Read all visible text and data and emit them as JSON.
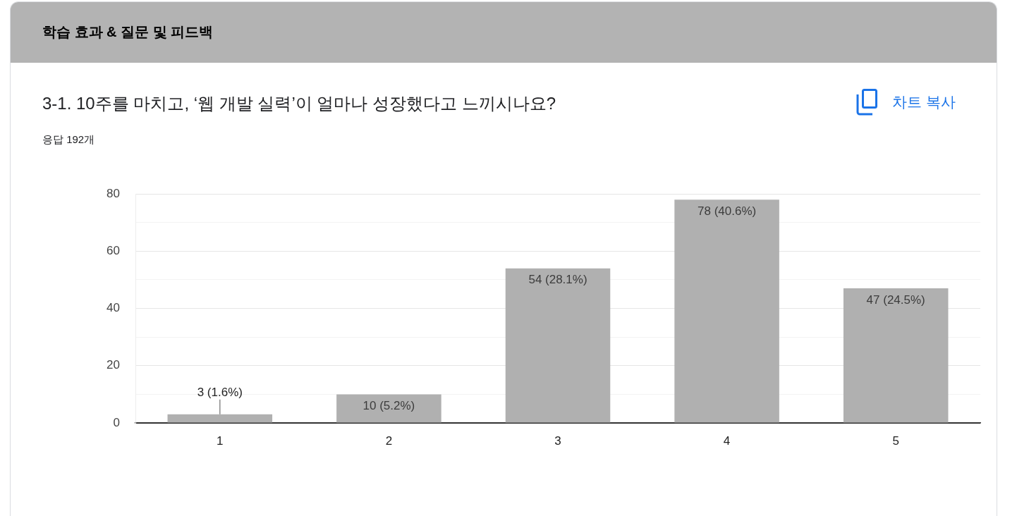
{
  "chart_data": {
    "type": "bar",
    "title": "3-1. 10주를 마치고, ‘웹 개발 실력’이 얼마나 성장했다고 느끼시나요?",
    "subtitle": "응답 192개",
    "annotations": [
      "학습 효과 & 질문 및 피드백",
      "차트 복사"
    ],
    "categories": [
      "1",
      "2",
      "3",
      "4",
      "5"
    ],
    "values": [
      3,
      10,
      54,
      78,
      47
    ],
    "value_labels": [
      "3 (1.6%)",
      "10 (5.2%)",
      "54 (28.1%)",
      "78 (40.6%)",
      "47 (24.5%)"
    ],
    "color": "#b0b0b0",
    "ylim": [
      0,
      80
    ],
    "yticks": [
      0,
      {
        "value": 10,
        "label": null
      },
      20,
      {
        "value": 30,
        "label": null
      },
      40,
      {
        "value": 50,
        "label": null
      },
      60,
      {
        "value": 70,
        "label": null
      },
      80
    ],
    "grid": "y"
  }
}
